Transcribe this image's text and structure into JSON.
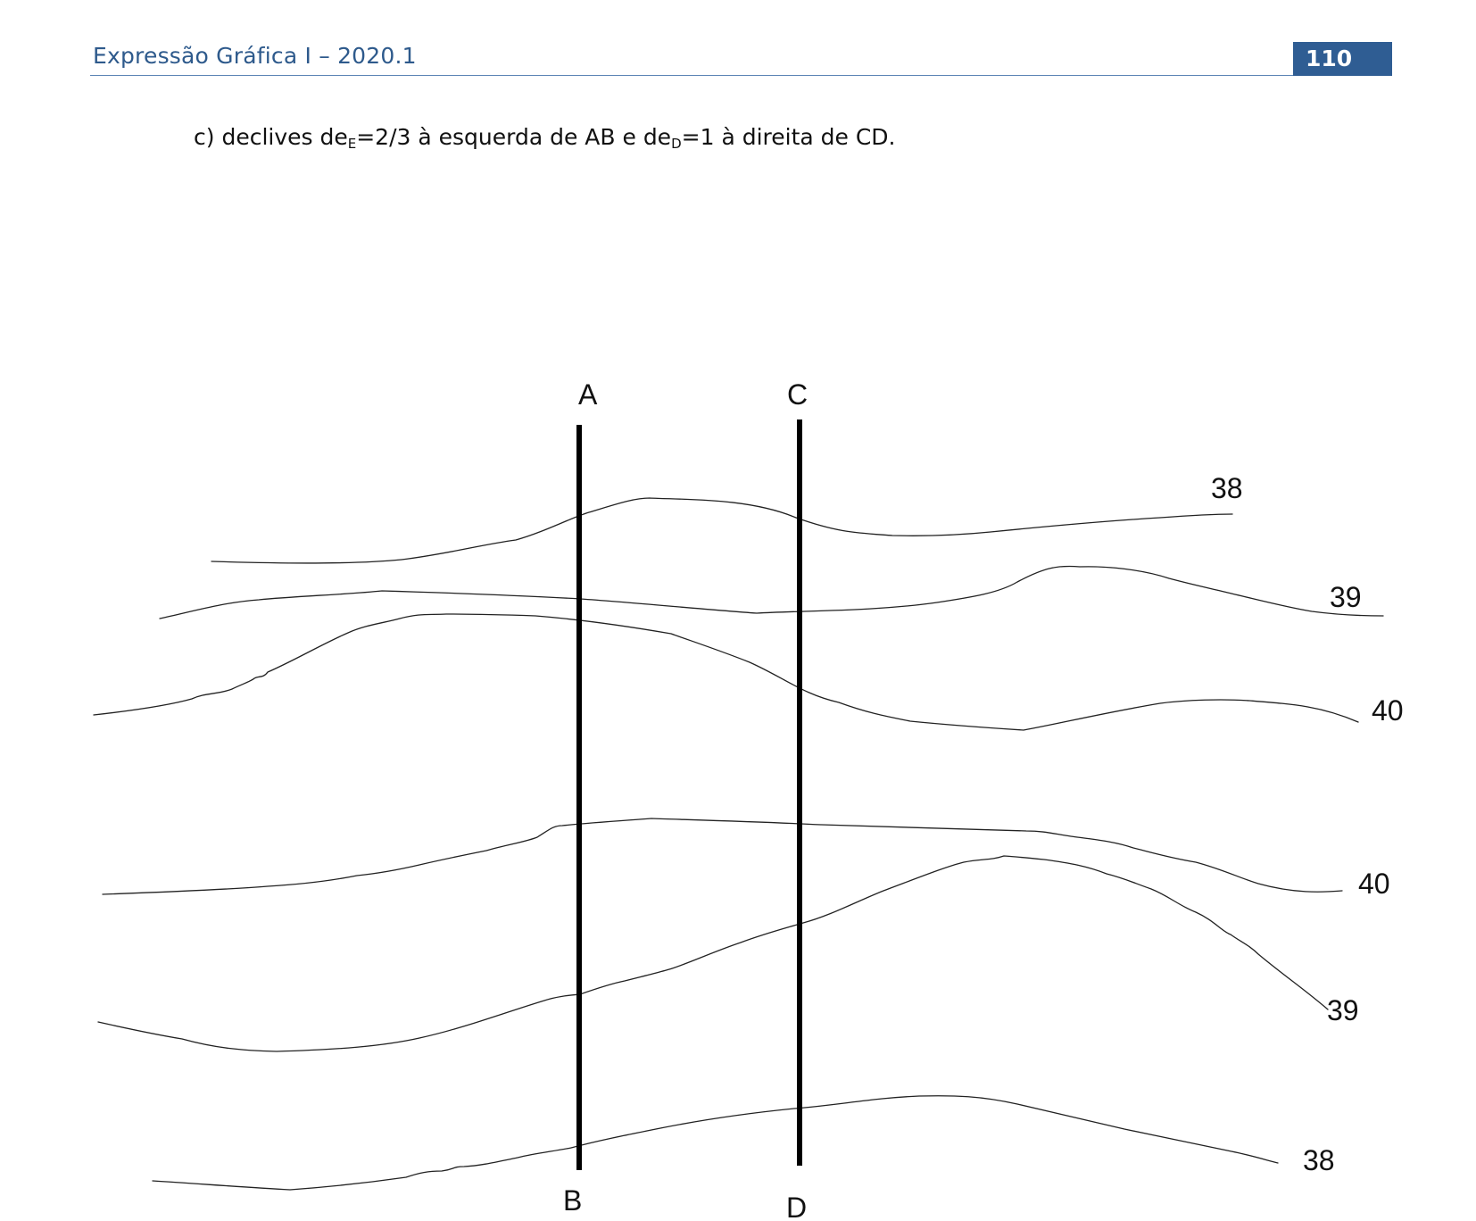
{
  "header": {
    "title": "Expressão Gráfica I – 2020.1",
    "page_number": "110"
  },
  "exercise": {
    "prefix": "c) declives de",
    "sub_left": "E",
    "mid": "=2/3 à esquerda de AB e de",
    "sub_right": "D",
    "suffix": "=1 à direita de CD."
  },
  "figure": {
    "line_ab": {
      "top_label": "A",
      "bottom_label": "B"
    },
    "line_cd": {
      "top_label": "C",
      "bottom_label": "D"
    },
    "contours": [
      {
        "label": "38"
      },
      {
        "label": "39"
      },
      {
        "label": "40"
      },
      {
        "label": "40"
      },
      {
        "label": "39"
      },
      {
        "label": "38"
      }
    ]
  }
}
